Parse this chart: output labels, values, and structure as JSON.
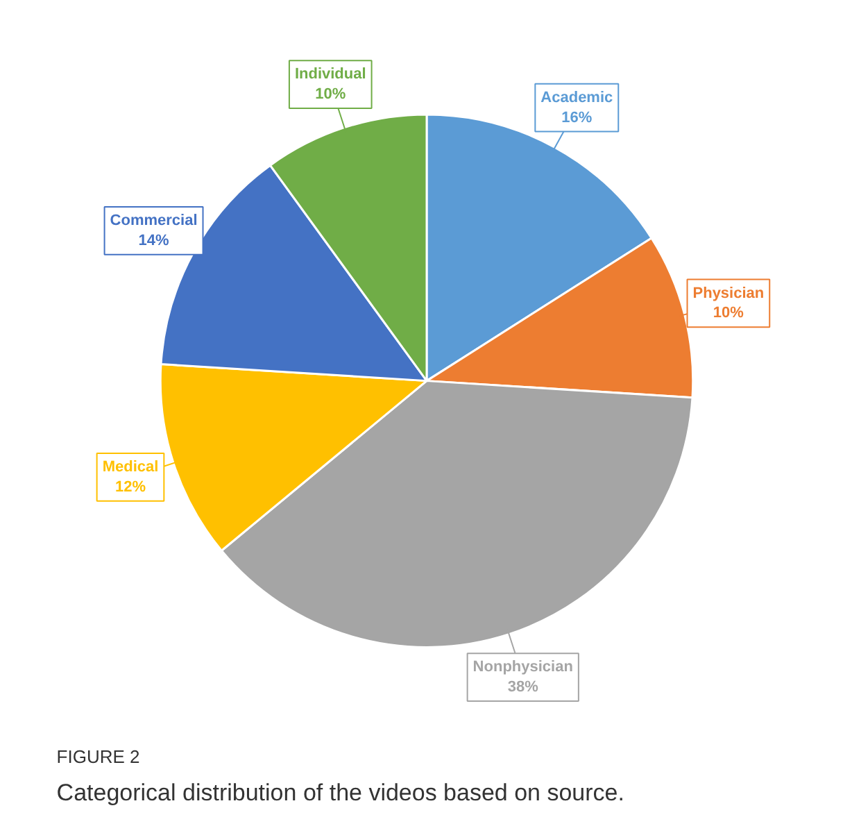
{
  "chart_data": {
    "type": "pie",
    "categories": [
      "Academic",
      "Physician",
      "Nonphysician",
      "Medical",
      "Commercial",
      "Individual"
    ],
    "values": [
      16,
      10,
      38,
      12,
      14,
      10
    ],
    "colors": [
      "#5b9bd5",
      "#ed7d31",
      "#a5a5a5",
      "#ffc000",
      "#4472c4",
      "#70ad47"
    ],
    "value_labels": [
      "16%",
      "10%",
      "38%",
      "12%",
      "14%",
      "10%"
    ],
    "annotations": [
      "FIGURE 2",
      "Categorical distribution of the videos based on source."
    ]
  }
}
